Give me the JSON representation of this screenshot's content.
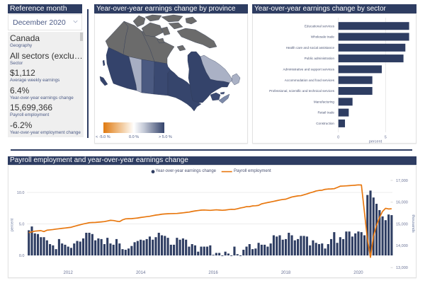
{
  "sidebar": {
    "reference_month_title": "Reference month",
    "reference_month_value": "December 2020",
    "cards": [
      {
        "value": "Canada",
        "label": "Geography"
      },
      {
        "value": "All sectors (exclu…",
        "label": "Sector"
      },
      {
        "value": "$1,112",
        "label": "Average weekly earnings"
      },
      {
        "value": "6.4%",
        "label": "Year-over-year earnings change"
      },
      {
        "value": "15,699,366",
        "label": "Payroll employment"
      },
      {
        "value": "-6.2%",
        "label": "Year-over-year employment change"
      }
    ]
  },
  "map": {
    "title": "Year-over-year earnings change by province",
    "legend": {
      "low_label": "< -5.0 %",
      "mid_label": "0.0 %",
      "high_label": "> 5.0 %",
      "low_color": "#e07a10",
      "mid_color": "#ffffff",
      "high_color": "#34436b"
    },
    "no_data_color": "#6b6b6b",
    "province_colors": {
      "british-columbia": "#34436b",
      "alberta": "#a7aec3",
      "saskatchewan": "#4b5a81",
      "manitoba": "#3a4971",
      "ontario": "#36456c",
      "quebec": "#34436a",
      "newfoundland-and-labrador": "#aab1c5",
      "new-brunswick": "#3b4a72",
      "nova-scotia": "#7d8aa9",
      "prince-edward-island": "#4b5a81",
      "yukon": "#6b6b6b",
      "northwest-territories": "#6b6b6b",
      "nunavut": "#6b6b6b"
    }
  },
  "chart_data": [
    {
      "type": "bar",
      "orientation": "horizontal",
      "title": "Year-over-year earnings change by sector",
      "categories": [
        "Educational services",
        "Wholesale trade",
        "Health care and social assistance",
        "Public administration",
        "Administrative and support services",
        "Accommodation and food services",
        "Professional, scientific and technical services",
        "Manufacturing",
        "Retail trade",
        "Construction"
      ],
      "values": [
        7.5,
        7.5,
        7.1,
        6.9,
        4.6,
        3.6,
        3.6,
        1.5,
        1.1,
        0.7
      ],
      "xlabel": "percent",
      "xticks": [
        "0",
        "5"
      ],
      "xtick_values": [
        0,
        5
      ],
      "xlim": [
        0,
        7.98
      ],
      "grid": true,
      "color": "#2e3d62"
    },
    {
      "type": "bar",
      "combo": "bar+line",
      "title": "Payroll employment and year-over-year earnings change",
      "x": [
        "2010-12",
        "2011-01",
        "2011-02",
        "2011-03",
        "2011-04",
        "2011-05",
        "2011-06",
        "2011-07",
        "2011-08",
        "2011-09",
        "2011-10",
        "2011-11",
        "2011-12",
        "2012-01",
        "2012-02",
        "2012-03",
        "2012-04",
        "2012-05",
        "2012-06",
        "2012-07",
        "2012-08",
        "2012-09",
        "2012-10",
        "2012-11",
        "2012-12",
        "2013-01",
        "2013-02",
        "2013-03",
        "2013-04",
        "2013-05",
        "2013-06",
        "2013-07",
        "2013-08",
        "2013-09",
        "2013-10",
        "2013-11",
        "2013-12",
        "2014-01",
        "2014-02",
        "2014-03",
        "2014-04",
        "2014-05",
        "2014-06",
        "2014-07",
        "2014-08",
        "2014-09",
        "2014-10",
        "2014-11",
        "2014-12",
        "2015-01",
        "2015-02",
        "2015-03",
        "2015-04",
        "2015-05",
        "2015-06",
        "2015-07",
        "2015-08",
        "2015-09",
        "2015-10",
        "2015-11",
        "2015-12",
        "2016-01",
        "2016-02",
        "2016-03",
        "2016-04",
        "2016-05",
        "2016-06",
        "2016-07",
        "2016-08",
        "2016-09",
        "2016-10",
        "2016-11",
        "2016-12",
        "2017-01",
        "2017-02",
        "2017-03",
        "2017-04",
        "2017-05",
        "2017-06",
        "2017-07",
        "2017-08",
        "2017-09",
        "2017-10",
        "2017-11",
        "2017-12",
        "2018-01",
        "2018-02",
        "2018-03",
        "2018-04",
        "2018-05",
        "2018-06",
        "2018-07",
        "2018-08",
        "2018-09",
        "2018-10",
        "2018-11",
        "2018-12",
        "2019-01",
        "2019-02",
        "2019-03",
        "2019-04",
        "2019-05",
        "2019-06",
        "2019-07",
        "2019-08",
        "2019-09",
        "2019-10",
        "2019-11",
        "2019-12",
        "2020-01",
        "2020-02",
        "2020-03",
        "2020-04",
        "2020-05",
        "2020-06",
        "2020-07",
        "2020-08",
        "2020-09",
        "2020-10",
        "2020-11",
        "2020-12"
      ],
      "series": [
        {
          "name": "Year-over-year earnings change",
          "type": "bar",
          "axis": "left",
          "color": "#2e3d62",
          "values": [
            4.0,
            4.6,
            3.5,
            3.4,
            2.9,
            2.9,
            2.4,
            1.8,
            1.6,
            1.0,
            2.6,
            1.9,
            1.7,
            1.4,
            1.2,
            1.9,
            2.3,
            2.2,
            2.7,
            3.6,
            3.6,
            3.4,
            2.4,
            2.7,
            2.6,
            1.8,
            2.8,
            1.9,
            1.7,
            2.6,
            1.9,
            1.0,
            0.9,
            1.1,
            1.5,
            2.1,
            2.3,
            2.5,
            2.4,
            2.6,
            3.0,
            2.5,
            2.9,
            3.6,
            3.2,
            3.1,
            2.8,
            1.7,
            1.7,
            2.8,
            2.5,
            2.7,
            2.5,
            1.4,
            1.8,
            1.6,
            0.6,
            1.4,
            1.4,
            1.4,
            1.6,
            0.1,
            0.4,
            0.4,
            -0.1,
            0.6,
            0.3,
            -0.1,
            1.4,
            0.2,
            -0.1,
            0.9,
            1.4,
            1.8,
            1.0,
            1.1,
            2.0,
            1.7,
            1.7,
            1.4,
            1.9,
            3.2,
            3.0,
            3.2,
            2.5,
            2.6,
            3.6,
            3.2,
            2.4,
            2.6,
            3.1,
            3.1,
            3.0,
            1.6,
            2.4,
            2.0,
            1.8,
            1.9,
            1.1,
            1.8,
            2.6,
            3.7,
            2.0,
            2.9,
            2.6,
            3.8,
            3.8,
            3.0,
            3.5,
            3.8,
            3.7,
            3.2,
            9.6,
            10.3,
            9.2,
            8.2,
            7.2,
            6.2,
            5.6,
            6.5,
            6.4
          ]
        },
        {
          "name": "Payroll employment",
          "type": "line",
          "axis": "right",
          "color": "#e8770e",
          "values": [
            14607,
            14640,
            14672,
            14685,
            14695,
            14652,
            14715,
            14730,
            14745,
            14765,
            14782,
            14800,
            14815,
            14832,
            14850,
            14890,
            14930,
            14965,
            15000,
            15030,
            15060,
            15068,
            15073,
            15085,
            15097,
            15110,
            15140,
            15170,
            15160,
            15130,
            15110,
            15190,
            15237,
            15242,
            15247,
            15260,
            15275,
            15300,
            15318,
            15337,
            15355,
            15382,
            15409,
            15425,
            15450,
            15462,
            15470,
            15476,
            15480,
            15484,
            15498,
            15513,
            15530,
            15545,
            15575,
            15600,
            15618,
            15636,
            15643,
            15635,
            15627,
            15638,
            15650,
            15640,
            15630,
            15640,
            15658,
            15675,
            15670,
            15700,
            15735,
            15760,
            15795,
            15799,
            15830,
            15838,
            15855,
            15925,
            15955,
            15985,
            16012,
            16040,
            16070,
            16100,
            16125,
            16140,
            16190,
            16240,
            16265,
            16290,
            16300,
            16340,
            16380,
            16430,
            16465,
            16515,
            16540,
            16550,
            16590,
            16605,
            16610,
            16620,
            16675,
            16735,
            16742,
            16750,
            16760,
            16770,
            16780,
            16795,
            16790,
            15550,
            14300,
            13470,
            14450,
            14940,
            15300,
            15580,
            15720,
            15690,
            15699
          ]
        }
      ],
      "ylabel": "percent",
      "y2label": "thousands",
      "ylim": [
        -2.13,
        12.7
      ],
      "y2lim": [
        12942,
        17227
      ],
      "yticks": [
        0,
        5,
        10
      ],
      "ytick_labels": [
        "0.0",
        "5.0",
        "10.0"
      ],
      "y2ticks": [
        13000,
        14000,
        15000,
        16000,
        17000
      ],
      "y2tick_labels": [
        "13,000",
        "14,000",
        "15,000",
        "16,000",
        "17,000"
      ],
      "xticks": [
        "2012-01",
        "2014-01",
        "2016-01",
        "2018-01",
        "2020-01"
      ],
      "xtick_labels": [
        "2012",
        "2014",
        "2016",
        "2018",
        "2020"
      ],
      "grid": true,
      "legend": "top-center"
    }
  ]
}
